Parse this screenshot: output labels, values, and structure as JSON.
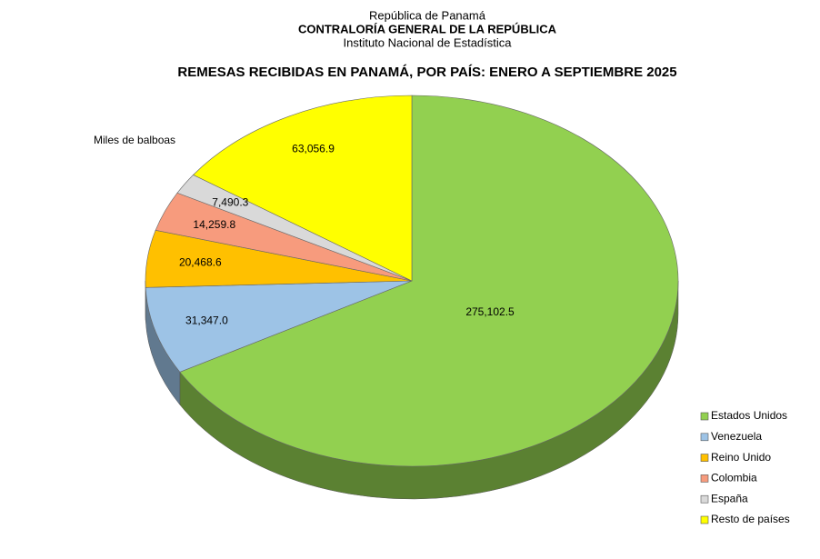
{
  "chart_data": {
    "type": "pie",
    "header": [
      "República de Panamá",
      "CONTRALORÍA  GENERAL  DE LA REPÚBLICA",
      "Instituto Nacional  de Estadística"
    ],
    "title": "REMESAS RECIBIDAS EN PANAMÁ, POR PAÍS: ENERO A SEPTIEMBRE 2025",
    "unit_label": "Miles de balboas",
    "categories": [
      "Estados Unidos",
      "Venezuela",
      "Reino Unido",
      "Colombia",
      "España",
      "Resto de países"
    ],
    "values": [
      275102.5,
      31347.0,
      20468.6,
      14259.8,
      7490.3,
      63056.9
    ],
    "value_labels": [
      "275,102.5",
      "31,347.0",
      "20,468.6",
      "14,259.8",
      "7,490.3",
      "63,056.9"
    ],
    "colors": [
      "#92d050",
      "#9dc3e6",
      "#ffc000",
      "#f79b7d",
      "#d9d9d9",
      "#ffff00"
    ]
  }
}
